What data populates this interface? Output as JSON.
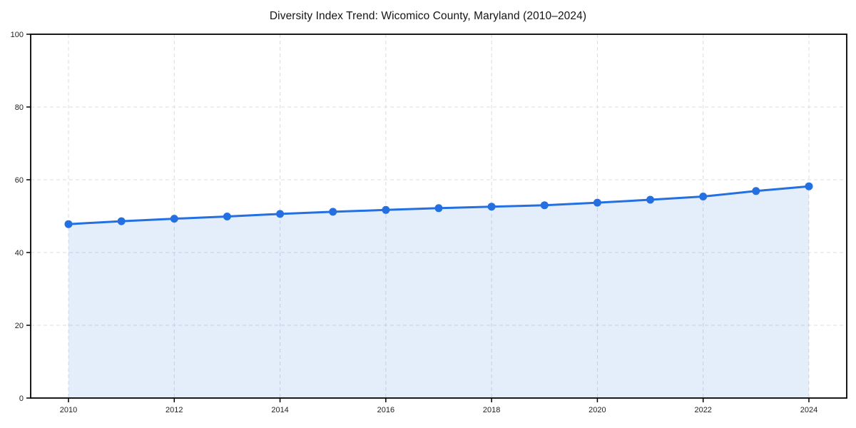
{
  "page": {
    "background": "#ffffff"
  },
  "chart_data": {
    "type": "area",
    "title": "Diversity Index Trend: Wicomico County, Maryland (2010–2024)",
    "x": [
      2010,
      2011,
      2012,
      2013,
      2014,
      2015,
      2016,
      2017,
      2018,
      2019,
      2020,
      2021,
      2022,
      2023,
      2024
    ],
    "values": [
      47.8,
      48.6,
      49.3,
      49.9,
      50.6,
      51.2,
      51.7,
      52.2,
      52.6,
      53.0,
      53.7,
      54.5,
      55.4,
      56.9,
      58.2
    ],
    "xlabel": "",
    "ylabel": "",
    "xlim": [
      2009.285,
      2024.715
    ],
    "ylim": [
      0,
      100
    ],
    "xticks": [
      2010,
      2012,
      2014,
      2016,
      2018,
      2020,
      2022,
      2024
    ],
    "yticks": [
      0,
      20,
      40,
      60,
      80,
      100
    ],
    "grid": true,
    "grid_style": "dashed",
    "legend": false,
    "colors": {
      "line": "#2470e2",
      "marker": "#2470e2",
      "fill": "rgba(36, 112, 226, 0.12)",
      "grid": "#d9dce1",
      "spine": "#000000",
      "tick_label": "#222222",
      "title": "#151515",
      "plot_background": "#ffffff"
    }
  }
}
